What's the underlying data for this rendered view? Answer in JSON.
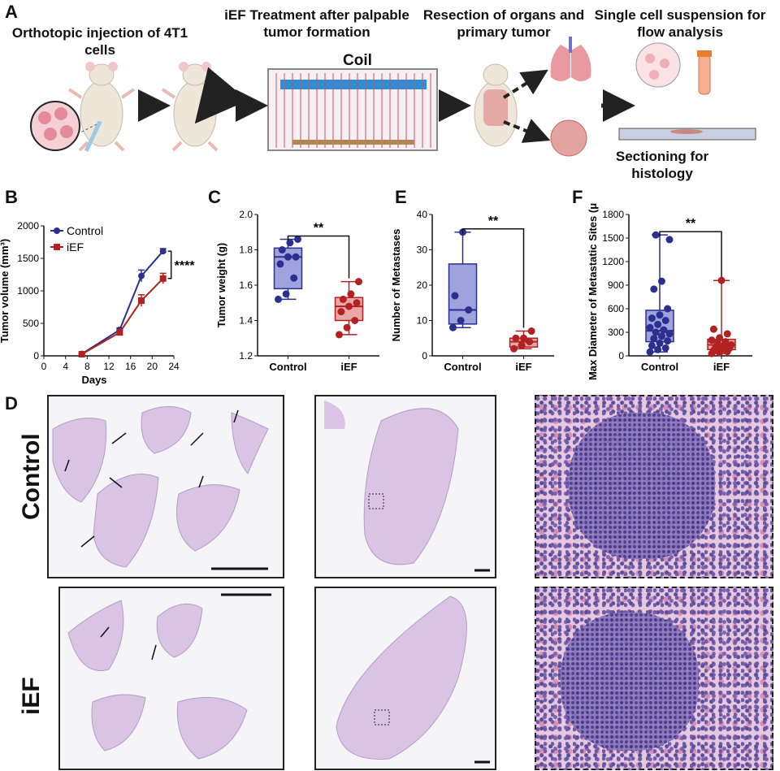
{
  "panel_labels": {
    "a": "A",
    "b": "B",
    "c": "C",
    "d": "D",
    "e": "E",
    "f": "F"
  },
  "schematic": {
    "step1": "Orthotopic injection of 4T1 cells",
    "step2": "iEF Treatment after palpable tumor formation",
    "coil_label": "Coil",
    "step3": "Resection of organs and primary tumor",
    "step4": "Single cell suspension for flow analysis",
    "step5": "Sectioning for histology"
  },
  "chart_data": [
    {
      "id": "B",
      "type": "line",
      "xlabel": "Days",
      "ylabel": "Tumor volume (mm³)",
      "xlim": [
        0,
        24
      ],
      "ylim": [
        0,
        2000
      ],
      "x_ticks": [
        "0",
        "4",
        "8",
        "12",
        "16",
        "20",
        "24"
      ],
      "y_ticks": [
        "0",
        "500",
        "1000",
        "1500",
        "2000"
      ],
      "x": [
        7,
        14,
        18,
        22
      ],
      "series": [
        {
          "name": "Control",
          "values": [
            30,
            400,
            1230,
            1610
          ],
          "errors": [
            10,
            30,
            90,
            40
          ],
          "color": "#2b2f8f",
          "marker": "circle"
        },
        {
          "name": "iEF",
          "values": [
            25,
            360,
            850,
            1190
          ],
          "errors": [
            10,
            30,
            90,
            80
          ],
          "color": "#b22222",
          "marker": "square"
        }
      ],
      "significance": "****",
      "legend": "top-left"
    },
    {
      "id": "C",
      "type": "box",
      "ylabel": "Tumor weight (g)",
      "ylim": [
        1.2,
        2.0
      ],
      "y_ticks": [
        "1.2",
        "1.4",
        "1.6",
        "1.8",
        "2.0"
      ],
      "categories": [
        "Control",
        "iEF"
      ],
      "boxes": [
        {
          "min": 1.52,
          "q1": 1.58,
          "median": 1.76,
          "q3": 1.81,
          "max": 1.86,
          "points": [
            1.52,
            1.55,
            1.64,
            1.72,
            1.76,
            1.76,
            1.8,
            1.84,
            1.86
          ]
        },
        {
          "min": 1.32,
          "q1": 1.4,
          "median": 1.48,
          "q3": 1.53,
          "max": 1.62,
          "points": [
            1.32,
            1.36,
            1.4,
            1.45,
            1.48,
            1.5,
            1.52,
            1.55,
            1.62
          ]
        }
      ],
      "colors": [
        "#2b2f8f",
        "#b22222"
      ],
      "fills": [
        "#9fa2dc",
        "#e8a8a8"
      ],
      "significance": "**"
    },
    {
      "id": "E",
      "type": "box",
      "ylabel": "Number of Metastases",
      "ylim": [
        0,
        40
      ],
      "y_ticks": [
        "0",
        "10",
        "20",
        "30",
        "40"
      ],
      "categories": [
        "Control",
        "iEF"
      ],
      "boxes": [
        {
          "min": 8,
          "q1": 9,
          "median": 13,
          "q3": 26,
          "max": 35,
          "points": [
            8,
            10,
            13,
            17,
            35
          ]
        },
        {
          "min": 2,
          "q1": 2.5,
          "median": 4,
          "q3": 5,
          "max": 7,
          "points": [
            2,
            3,
            4,
            5,
            5,
            7
          ]
        }
      ],
      "colors": [
        "#2b2f8f",
        "#b22222"
      ],
      "fills": [
        "#9fa2dc",
        "#e8a8a8"
      ],
      "significance": "**"
    },
    {
      "id": "F",
      "type": "box",
      "ylabel": "Max Diameter of Metastatic Sites (μm)",
      "ylim": [
        0,
        1800
      ],
      "y_ticks": [
        "0",
        "300",
        "600",
        "900",
        "1200",
        "1500",
        "1800"
      ],
      "categories": [
        "Control",
        "iEF"
      ],
      "boxes": [
        {
          "min": 50,
          "q1": 180,
          "median": 320,
          "q3": 580,
          "max": 1540,
          "points": [
            50,
            80,
            100,
            130,
            160,
            190,
            220,
            250,
            280,
            300,
            330,
            360,
            400,
            450,
            480,
            520,
            600,
            850,
            950,
            1480,
            1540
          ]
        },
        {
          "min": 30,
          "q1": 80,
          "median": 140,
          "q3": 210,
          "max": 960,
          "points": [
            30,
            40,
            55,
            70,
            80,
            95,
            110,
            125,
            140,
            160,
            180,
            200,
            230,
            280,
            340,
            960
          ]
        }
      ],
      "colors": [
        "#2b2f8f",
        "#b22222"
      ],
      "fills": [
        "#9fa2dc",
        "#e8a8a8"
      ],
      "significance": "**"
    }
  ],
  "histology": {
    "row1_label": "Control",
    "row2_label": "iEF"
  }
}
